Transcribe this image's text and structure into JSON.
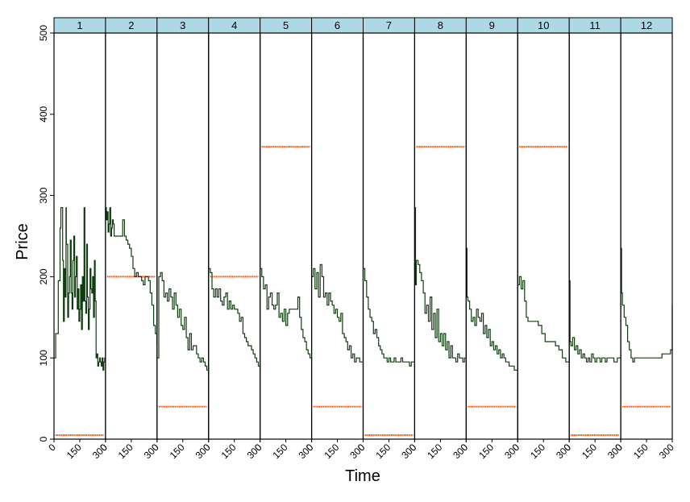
{
  "chart_data": {
    "type": "line",
    "xlabel": "Time",
    "ylabel": "Price",
    "ylim": [
      0,
      500
    ],
    "xlim": [
      0,
      300
    ],
    "y_ticks": [
      0,
      100,
      200,
      300,
      400,
      500
    ],
    "x_ticks": [
      0,
      150,
      300
    ],
    "panel_labels": [
      "1",
      "2",
      "3",
      "4",
      "5",
      "6",
      "7",
      "8",
      "9",
      "10",
      "11",
      "12"
    ],
    "colors": {
      "price": "#0f3d0f",
      "reference": "#ff4500",
      "strip": "#add8e6",
      "frame": "#000000"
    },
    "panels": [
      {
        "label": "1",
        "reference_value": 5,
        "price": {
          "x": [
            0,
            10,
            25,
            35,
            40,
            50,
            55,
            60,
            65,
            70,
            72,
            80,
            85,
            90,
            95,
            100,
            105,
            110,
            115,
            120,
            125,
            130,
            135,
            140,
            145,
            150,
            155,
            160,
            165,
            170,
            175,
            180,
            185,
            190,
            195,
            200,
            205,
            210,
            215,
            220,
            225,
            230,
            235,
            240,
            245,
            250,
            255,
            260,
            265,
            270,
            275,
            280,
            285,
            290,
            295,
            300
          ],
          "y": [
            100,
            130,
            195,
            260,
            285,
            220,
            145,
            210,
            175,
            285,
            240,
            150,
            180,
            200,
            245,
            180,
            160,
            220,
            250,
            175,
            200,
            225,
            160,
            185,
            145,
            160,
            190,
            135,
            200,
            170,
            285,
            170,
            155,
            240,
            175,
            135,
            160,
            210,
            185,
            180,
            200,
            150,
            220,
            170,
            100,
            105,
            90,
            95,
            100,
            95,
            90,
            100,
            85,
            95,
            100,
            100
          ]
        }
      },
      {
        "label": "2",
        "reference_value": 200,
        "price": {
          "x": [
            0,
            5,
            10,
            15,
            20,
            25,
            30,
            35,
            40,
            45,
            50,
            60,
            70,
            80,
            90,
            100,
            110,
            120,
            130,
            140,
            150,
            160,
            170,
            180,
            190,
            200,
            210,
            220,
            230,
            240,
            250,
            260,
            270,
            280,
            290,
            300
          ],
          "y": [
            285,
            270,
            280,
            255,
            265,
            285,
            250,
            260,
            270,
            265,
            250,
            250,
            250,
            250,
            250,
            270,
            250,
            245,
            240,
            235,
            225,
            210,
            200,
            205,
            200,
            200,
            195,
            190,
            200,
            200,
            195,
            180,
            165,
            140,
            130,
            115
          ]
        }
      },
      {
        "label": "3",
        "reference_value": 40,
        "price": {
          "x": [
            0,
            10,
            20,
            30,
            40,
            50,
            60,
            70,
            80,
            90,
            100,
            110,
            120,
            130,
            140,
            150,
            160,
            170,
            180,
            190,
            200,
            210,
            220,
            230,
            240,
            250,
            260,
            270,
            280,
            290,
            300
          ],
          "y": [
            100,
            200,
            205,
            195,
            175,
            180,
            170,
            185,
            175,
            160,
            180,
            165,
            150,
            160,
            140,
            135,
            150,
            125,
            110,
            130,
            110,
            115,
            115,
            105,
            100,
            95,
            100,
            95,
            90,
            85,
            80
          ]
        }
      },
      {
        "label": "4",
        "reference_value": 200,
        "price": {
          "x": [
            0,
            10,
            20,
            30,
            40,
            50,
            60,
            70,
            80,
            90,
            100,
            110,
            120,
            130,
            140,
            150,
            160,
            170,
            180,
            190,
            200,
            210,
            220,
            230,
            240,
            250,
            260,
            270,
            280,
            290,
            300
          ],
          "y": [
            210,
            205,
            185,
            175,
            185,
            175,
            185,
            170,
            165,
            175,
            180,
            160,
            170,
            160,
            165,
            160,
            160,
            155,
            145,
            150,
            130,
            125,
            120,
            115,
            115,
            110,
            105,
            100,
            95,
            90,
            85
          ]
        }
      },
      {
        "label": "5",
        "reference_value": 360,
        "price": {
          "x": [
            0,
            10,
            20,
            30,
            40,
            50,
            60,
            70,
            80,
            90,
            100,
            110,
            120,
            130,
            140,
            150,
            160,
            170,
            180,
            190,
            200,
            210,
            220,
            230,
            240,
            250,
            260,
            270,
            280,
            290,
            300
          ],
          "y": [
            210,
            200,
            185,
            190,
            160,
            175,
            180,
            165,
            160,
            165,
            180,
            150,
            155,
            145,
            160,
            140,
            155,
            160,
            160,
            160,
            160,
            160,
            175,
            150,
            135,
            125,
            120,
            110,
            105,
            100,
            95
          ]
        }
      },
      {
        "label": "6",
        "reference_value": 40,
        "price": {
          "x": [
            0,
            10,
            20,
            30,
            40,
            50,
            60,
            70,
            80,
            90,
            100,
            110,
            120,
            130,
            140,
            150,
            160,
            170,
            180,
            190,
            200,
            210,
            220,
            230,
            240,
            250,
            260,
            270,
            280,
            290,
            300
          ],
          "y": [
            200,
            210,
            185,
            205,
            175,
            215,
            200,
            175,
            180,
            165,
            180,
            170,
            165,
            155,
            160,
            150,
            145,
            155,
            130,
            125,
            120,
            110,
            115,
            100,
            105,
            95,
            100,
            100,
            95,
            95,
            100
          ]
        }
      },
      {
        "label": "7",
        "reference_value": 5,
        "price": {
          "x": [
            0,
            10,
            20,
            30,
            40,
            50,
            60,
            70,
            80,
            90,
            100,
            110,
            120,
            130,
            140,
            150,
            160,
            170,
            180,
            190,
            200,
            210,
            220,
            230,
            240,
            250,
            260,
            270,
            280,
            290,
            300
          ],
          "y": [
            210,
            195,
            175,
            160,
            150,
            145,
            130,
            135,
            125,
            115,
            110,
            105,
            100,
            100,
            95,
            100,
            95,
            95,
            100,
            95,
            95,
            95,
            100,
            95,
            95,
            95,
            95,
            90,
            95,
            95,
            95
          ]
        }
      },
      {
        "label": "8",
        "reference_value": 360,
        "price": {
          "x": [
            0,
            5,
            10,
            20,
            30,
            40,
            50,
            60,
            70,
            80,
            90,
            100,
            110,
            120,
            130,
            140,
            150,
            160,
            170,
            180,
            190,
            200,
            210,
            220,
            230,
            240,
            250,
            260,
            270,
            280,
            290,
            300
          ],
          "y": [
            285,
            190,
            220,
            215,
            205,
            195,
            180,
            155,
            165,
            145,
            175,
            135,
            155,
            125,
            160,
            120,
            130,
            115,
            130,
            110,
            120,
            100,
            115,
            100,
            100,
            95,
            105,
            100,
            100,
            95,
            100,
            100
          ]
        }
      },
      {
        "label": "9",
        "reference_value": 40,
        "price": {
          "x": [
            0,
            5,
            10,
            20,
            30,
            40,
            50,
            60,
            70,
            80,
            90,
            100,
            110,
            120,
            130,
            140,
            150,
            160,
            170,
            180,
            190,
            200,
            210,
            220,
            230,
            240,
            250,
            260,
            270,
            280,
            290,
            300
          ],
          "y": [
            235,
            175,
            170,
            160,
            145,
            150,
            140,
            160,
            150,
            145,
            155,
            130,
            140,
            125,
            135,
            115,
            120,
            110,
            115,
            105,
            110,
            100,
            105,
            100,
            95,
            95,
            90,
            90,
            90,
            85,
            85,
            85
          ]
        }
      },
      {
        "label": "10",
        "reference_value": 360,
        "price": {
          "x": [
            0,
            10,
            20,
            30,
            40,
            50,
            60,
            80,
            100,
            120,
            140,
            160,
            180,
            200,
            220,
            240,
            260,
            280,
            300
          ],
          "y": [
            190,
            200,
            185,
            195,
            170,
            150,
            145,
            145,
            145,
            140,
            130,
            120,
            120,
            120,
            115,
            110,
            100,
            95,
            100
          ]
        }
      },
      {
        "label": "11",
        "reference_value": 5,
        "price": {
          "x": [
            0,
            5,
            10,
            20,
            30,
            40,
            50,
            60,
            70,
            80,
            90,
            100,
            110,
            120,
            130,
            140,
            150,
            160,
            170,
            180,
            190,
            200,
            210,
            220,
            230,
            240,
            250,
            260,
            270,
            280,
            290,
            300
          ],
          "y": [
            195,
            120,
            115,
            125,
            110,
            115,
            105,
            110,
            100,
            105,
            100,
            95,
            100,
            95,
            105,
            100,
            95,
            100,
            100,
            95,
            100,
            100,
            95,
            100,
            100,
            100,
            100,
            95,
            95,
            100,
            100,
            105
          ]
        }
      },
      {
        "label": "12",
        "reference_value": 40,
        "price": {
          "x": [
            0,
            5,
            10,
            20,
            30,
            40,
            50,
            60,
            70,
            80,
            100,
            120,
            140,
            160,
            180,
            200,
            220,
            240,
            260,
            280,
            290,
            300
          ],
          "y": [
            235,
            180,
            165,
            150,
            140,
            120,
            110,
            100,
            95,
            100,
            100,
            100,
            100,
            100,
            100,
            100,
            100,
            105,
            105,
            105,
            110,
            165
          ]
        }
      }
    ]
  }
}
